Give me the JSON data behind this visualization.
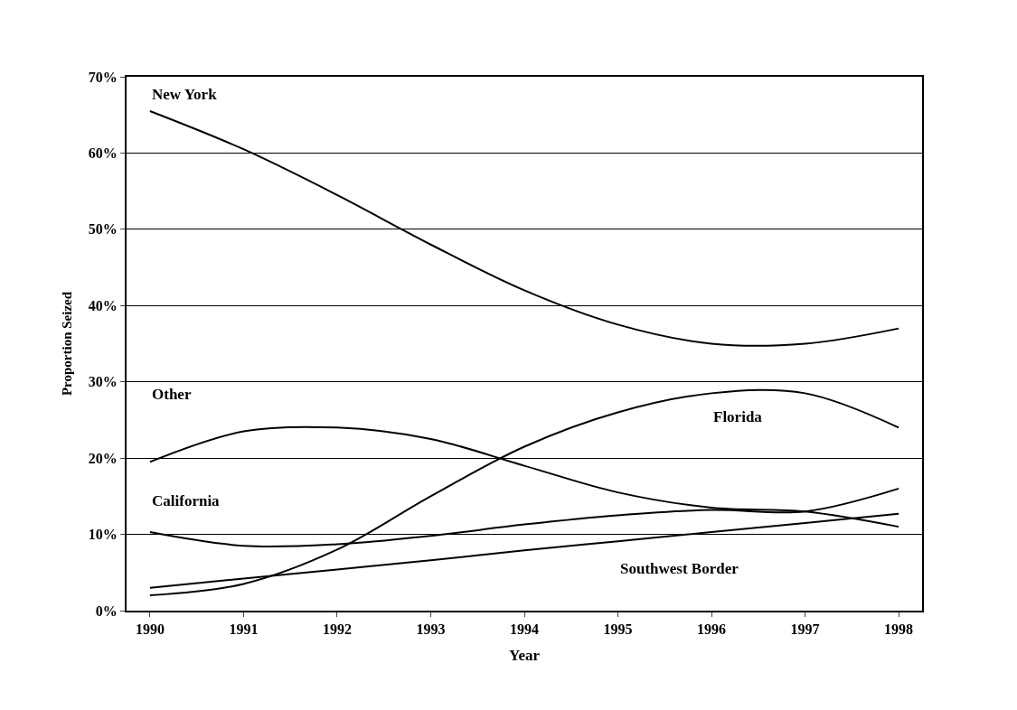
{
  "chart_data": {
    "type": "line",
    "xlabel": "Year",
    "ylabel": "Proportion Seized",
    "categories": [
      "1990",
      "1991",
      "1992",
      "1993",
      "1994",
      "1995",
      "1996",
      "1997",
      "1998"
    ],
    "series": [
      {
        "name": "New York",
        "color": "#000000",
        "values": [
          65.5,
          60.5,
          54.5,
          48,
          42,
          37.5,
          35,
          35,
          37
        ]
      },
      {
        "name": "Florida",
        "color": "#000000",
        "values": [
          2,
          3.5,
          8,
          15,
          21.5,
          26,
          28.5,
          28.5,
          24
        ]
      },
      {
        "name": "Other",
        "color": "#000000",
        "values": [
          19.5,
          23.5,
          24,
          22.5,
          19,
          15.5,
          13.5,
          13,
          11
        ]
      },
      {
        "name": "California",
        "color": "#000000",
        "values": [
          10.3,
          8.5,
          8.7,
          9.8,
          11.3,
          12.5,
          13.2,
          13,
          16
        ]
      },
      {
        "name": "Southwest Border",
        "color": "#000000",
        "values": [
          3,
          4.2,
          5.4,
          6.6,
          7.9,
          9.1,
          10.3,
          11.5,
          12.7
        ]
      }
    ],
    "ylim": [
      0,
      70
    ],
    "yticks": [
      {
        "value": 0,
        "label": "0%"
      },
      {
        "value": 10,
        "label": "10%"
      },
      {
        "value": 20,
        "label": "20%"
      },
      {
        "value": 30,
        "label": "30%"
      },
      {
        "value": 40,
        "label": "40%"
      },
      {
        "value": 50,
        "label": "50%"
      },
      {
        "value": 60,
        "label": "60%"
      },
      {
        "value": 70,
        "label": "70%"
      }
    ],
    "grid": "y",
    "marker": "none",
    "line_style": "solid"
  }
}
